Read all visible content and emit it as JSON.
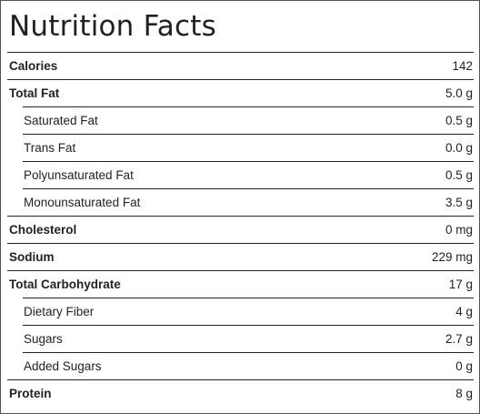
{
  "title": "Nutrition Facts",
  "rows": [
    {
      "label": "Calories",
      "value": "142",
      "bold": true,
      "indent": false
    },
    {
      "label": "Total Fat",
      "value": "5.0 g",
      "bold": true,
      "indent": false
    },
    {
      "label": "Saturated Fat",
      "value": "0.5 g",
      "bold": false,
      "indent": true
    },
    {
      "label": "Trans Fat",
      "value": "0.0 g",
      "bold": false,
      "indent": true
    },
    {
      "label": "Polyunsaturated Fat",
      "value": "0.5 g",
      "bold": false,
      "indent": true
    },
    {
      "label": "Monounsaturated Fat",
      "value": "3.5 g",
      "bold": false,
      "indent": true
    },
    {
      "label": "Cholesterol",
      "value": "0 mg",
      "bold": true,
      "indent": false
    },
    {
      "label": "Sodium",
      "value": "229 mg",
      "bold": true,
      "indent": false
    },
    {
      "label": "Total Carbohydrate",
      "value": "17 g",
      "bold": true,
      "indent": false
    },
    {
      "label": "Dietary Fiber",
      "value": "4 g",
      "bold": false,
      "indent": true
    },
    {
      "label": "Sugars",
      "value": "2.7 g",
      "bold": false,
      "indent": true
    },
    {
      "label": "Added Sugars",
      "value": "0 g",
      "bold": false,
      "indent": true
    },
    {
      "label": "Protein",
      "value": "8 g",
      "bold": true,
      "indent": false
    }
  ]
}
